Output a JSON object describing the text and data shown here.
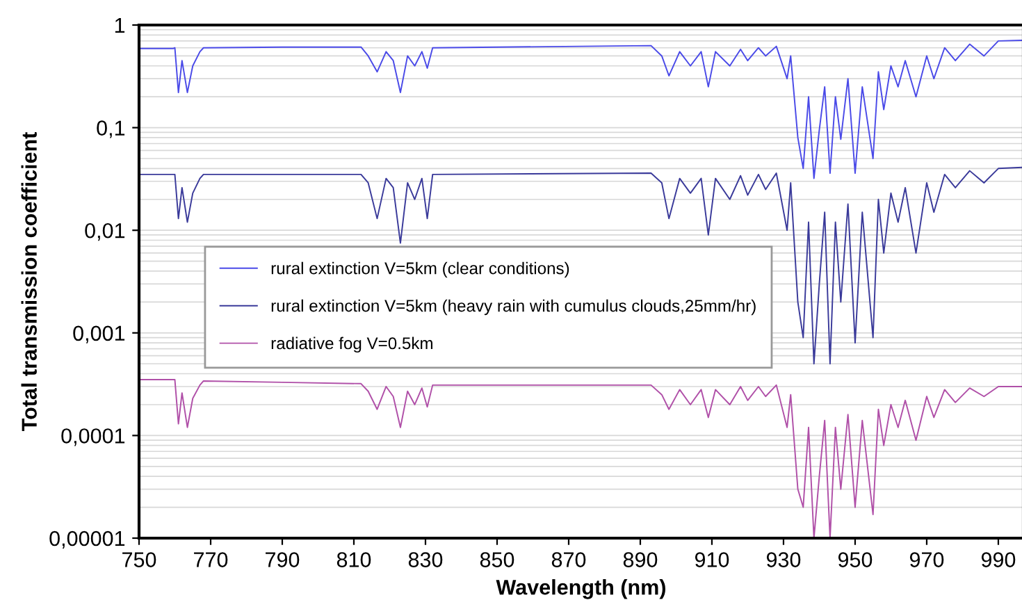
{
  "chart_data": {
    "type": "line",
    "xlabel": "Wavelength (nm)",
    "ylabel": "Total transmission coefficient",
    "x": [
      750,
      759.5,
      760,
      761,
      762,
      763.5,
      765,
      767,
      768,
      790,
      812,
      814,
      816.5,
      819,
      821,
      823,
      825,
      827,
      829,
      830.5,
      832,
      893,
      896,
      898,
      901,
      904,
      907,
      909,
      911,
      915,
      918,
      920,
      923,
      925,
      928,
      931,
      932,
      934,
      935.5,
      937,
      938.5,
      940,
      941.5,
      943,
      944.5,
      946,
      948,
      950,
      952,
      955,
      956.5,
      958,
      960,
      962,
      964,
      967,
      970,
      972,
      975,
      978,
      982,
      986,
      990,
      997
    ],
    "series": [
      {
        "name": "rural extinction V=5km (clear conditions)",
        "color": "#4a4ae8",
        "values": [
          0.59,
          0.59,
          0.6,
          0.22,
          0.45,
          0.22,
          0.4,
          0.55,
          0.6,
          0.61,
          0.61,
          0.5,
          0.35,
          0.55,
          0.45,
          0.22,
          0.5,
          0.4,
          0.55,
          0.38,
          0.6,
          0.63,
          0.5,
          0.32,
          0.55,
          0.4,
          0.55,
          0.25,
          0.55,
          0.4,
          0.58,
          0.45,
          0.6,
          0.5,
          0.62,
          0.3,
          0.5,
          0.08,
          0.04,
          0.2,
          0.032,
          0.095,
          0.25,
          0.036,
          0.2,
          0.077,
          0.3,
          0.036,
          0.25,
          0.05,
          0.35,
          0.15,
          0.4,
          0.25,
          0.45,
          0.2,
          0.5,
          0.3,
          0.6,
          0.45,
          0.65,
          0.5,
          0.7,
          0.71
        ]
      },
      {
        "name": "rural extinction V=5km (heavy rain with cumulus clouds,25mm/hr)",
        "color": "#3a3a9a",
        "values": [
          0.035,
          0.035,
          0.035,
          0.013,
          0.026,
          0.012,
          0.023,
          0.032,
          0.035,
          0.035,
          0.035,
          0.029,
          0.013,
          0.032,
          0.026,
          0.0075,
          0.029,
          0.02,
          0.032,
          0.013,
          0.035,
          0.036,
          0.029,
          0.013,
          0.032,
          0.023,
          0.032,
          0.009,
          0.032,
          0.02,
          0.034,
          0.022,
          0.035,
          0.025,
          0.036,
          0.01,
          0.029,
          0.002,
          0.0009,
          0.012,
          0.0005,
          0.003,
          0.015,
          0.0005,
          0.012,
          0.002,
          0.018,
          0.0008,
          0.015,
          0.0009,
          0.02,
          0.006,
          0.023,
          0.012,
          0.026,
          0.006,
          0.029,
          0.015,
          0.035,
          0.026,
          0.038,
          0.029,
          0.04,
          0.041
        ]
      },
      {
        "name": "radiative fog V=0.5km",
        "color": "#b050a8",
        "values": [
          0.00035,
          0.00035,
          0.00035,
          0.00013,
          0.00026,
          0.00012,
          0.00023,
          0.00031,
          0.00034,
          0.00033,
          0.00032,
          0.00027,
          0.00018,
          0.0003,
          0.00024,
          0.00012,
          0.00027,
          0.0002,
          0.00029,
          0.00019,
          0.00031,
          0.00031,
          0.00025,
          0.00018,
          0.00028,
          0.0002,
          0.00028,
          0.00015,
          0.00028,
          0.0002,
          0.0003,
          0.00022,
          0.0003,
          0.00024,
          0.00031,
          0.00012,
          0.00025,
          3e-05,
          2e-05,
          0.00012,
          1e-05,
          4e-05,
          0.00014,
          1e-05,
          0.00012,
          3e-05,
          0.00016,
          2e-05,
          0.00014,
          1.7e-05,
          0.00018,
          8e-05,
          0.0002,
          0.00012,
          0.00022,
          9e-05,
          0.00024,
          0.00015,
          0.00028,
          0.00021,
          0.00029,
          0.00024,
          0.0003,
          0.0003
        ]
      }
    ],
    "xlim": [
      750,
      997
    ],
    "xticks": [
      750,
      770,
      790,
      810,
      830,
      850,
      870,
      890,
      910,
      930,
      950,
      970,
      990
    ],
    "ylim": [
      1e-05,
      1
    ],
    "yticks": [
      {
        "value": 1,
        "label": "1"
      },
      {
        "value": 0.1,
        "label": "0,1"
      },
      {
        "value": 0.01,
        "label": "0,01"
      },
      {
        "value": 0.001,
        "label": "0,001"
      },
      {
        "value": 0.0001,
        "label": "0,0001"
      },
      {
        "value": 1e-05,
        "label": "0,00001"
      }
    ],
    "log": "y",
    "grid": "y",
    "legend": "center",
    "marker": "none",
    "line_style": "solid"
  }
}
